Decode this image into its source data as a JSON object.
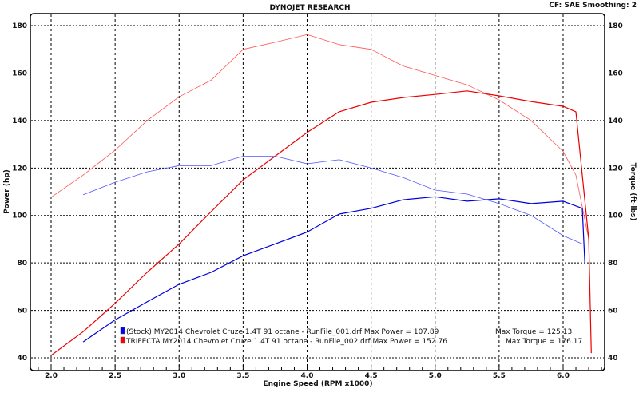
{
  "header": {
    "title": "DYNOJET RESEARCH",
    "settings": "CF: SAE  Smoothing: 2"
  },
  "chart_data": {
    "type": "line",
    "title": "DYNOJET RESEARCH",
    "xlabel": "Engine Speed (RPM x1000)",
    "ylabel": "Power (hp)",
    "y2label": "Torque (ft-lbs)",
    "xlim": [
      1.99,
      6.32
    ],
    "ylim": [
      37,
      185
    ],
    "xticks": [
      "2.0",
      "2.5",
      "3.0",
      "3.5",
      "4.0",
      "4.5",
      "5.0",
      "5.5",
      "6.0"
    ],
    "yticks": [
      "40",
      "60",
      "80",
      "100",
      "120",
      "140",
      "160",
      "180"
    ],
    "grid": true,
    "legend_position": "bottom-left",
    "series": [
      {
        "name": "TRIFECTA Torque",
        "color": "#ff5555",
        "kind": "torque",
        "x": [
          2.0,
          2.25,
          2.5,
          2.75,
          3.0,
          3.25,
          3.5,
          3.75,
          4.0,
          4.25,
          4.5,
          4.75,
          5.0,
          5.25,
          5.5,
          5.75,
          6.0,
          6.1,
          6.2
        ],
        "y": [
          107.7,
          117,
          127.5,
          140,
          150,
          157,
          170,
          173,
          176.2,
          172,
          170,
          163,
          159,
          155,
          148.7,
          140,
          127,
          117,
          90
        ]
      },
      {
        "name": "TRIFECTA Power",
        "color": "#ee0000",
        "kind": "power",
        "x": [
          2.0,
          2.25,
          2.5,
          2.75,
          3.0,
          3.25,
          3.5,
          3.75,
          4.0,
          4.25,
          4.5,
          4.75,
          5.0,
          5.25,
          5.5,
          5.75,
          6.0,
          6.1,
          6.2,
          6.22
        ],
        "y": [
          41,
          51,
          63,
          76,
          88,
          101.6,
          115,
          125,
          135,
          143.7,
          147.7,
          149.7,
          151,
          152.5,
          150.4,
          148,
          146,
          143.7,
          90,
          42
        ]
      },
      {
        "name": "Stock Torque",
        "color": "#5555ff",
        "kind": "torque",
        "x": [
          2.25,
          2.5,
          2.75,
          3.0,
          3.25,
          3.5,
          3.75,
          4.0,
          4.25,
          4.5,
          4.75,
          5.0,
          5.25,
          5.5,
          5.75,
          6.0,
          6.15
        ],
        "y": [
          108.7,
          114,
          118.4,
          121,
          121,
          125,
          125,
          121.8,
          123.5,
          120,
          116,
          110.7,
          109,
          105,
          100,
          91.5,
          88
        ]
      },
      {
        "name": "Stock Power",
        "color": "#0000dd",
        "kind": "power",
        "x": [
          2.25,
          2.5,
          2.75,
          3.0,
          3.25,
          3.5,
          3.75,
          4.0,
          4.25,
          4.5,
          4.75,
          5.0,
          5.25,
          5.5,
          5.75,
          6.0,
          6.15,
          6.17
        ],
        "y": [
          46.7,
          56,
          63.6,
          71,
          76,
          83,
          88,
          93,
          100.6,
          103,
          106.6,
          107.9,
          106,
          107,
          105,
          106,
          103,
          80
        ]
      }
    ],
    "legend": [
      {
        "color": "#0000ff",
        "label": "(Stock) MY2014 Chevrolet Cruze 1.4T 91 octane - RunFile_001.drf Max Power = 107.89",
        "torque": "Max Torque = 125.13"
      },
      {
        "color": "#ff0000",
        "label": "TRIFECTA MY2014 Chevrolet Cruze 1.4T 91 octane - RunFile_002.drf Max Power = 152.76",
        "torque": "Max Torque = 176.17"
      }
    ]
  }
}
